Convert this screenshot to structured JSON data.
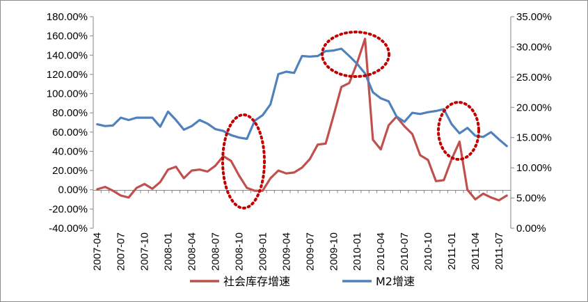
{
  "chart_data": {
    "type": "line",
    "x": [
      "2007-04",
      "2007-05",
      "2007-06",
      "2007-07",
      "2007-08",
      "2007-09",
      "2007-10",
      "2007-11",
      "2007-12",
      "2008-01",
      "2008-02",
      "2008-03",
      "2008-04",
      "2008-05",
      "2008-06",
      "2008-07",
      "2008-08",
      "2008-09",
      "2008-10",
      "2008-11",
      "2008-12",
      "2009-01",
      "2009-02",
      "2009-03",
      "2009-04",
      "2009-05",
      "2009-06",
      "2009-07",
      "2009-08",
      "2009-09",
      "2009-10",
      "2009-11",
      "2009-12",
      "2010-01",
      "2010-02",
      "2010-03",
      "2010-04",
      "2010-05",
      "2010-06",
      "2010-07",
      "2010-08",
      "2010-09",
      "2010-10",
      "2010-11",
      "2010-12",
      "2011-01",
      "2011-02",
      "2011-03",
      "2011-04",
      "2011-05",
      "2011-06",
      "2011-07",
      "2011-08"
    ],
    "x_tick_labels": [
      "2007-04",
      "2007-07",
      "2007-10",
      "2008-01",
      "2008-04",
      "2008-07",
      "2008-10",
      "2009-01",
      "2009-04",
      "2009-07",
      "2009-10",
      "2010-01",
      "2010-04",
      "2010-07",
      "2010-10",
      "2011-01",
      "2011-04",
      "2011-07"
    ],
    "y_left": {
      "ticks": [
        "-40.00%",
        "-20.00%",
        "0.00%",
        "20.00%",
        "40.00%",
        "60.00%",
        "80.00%",
        "100.00%",
        "120.00%",
        "140.00%",
        "160.00%",
        "180.00%"
      ],
      "min": -40,
      "max": 180
    },
    "y_right": {
      "ticks": [
        "0.00%",
        "5.00%",
        "10.00%",
        "15.00%",
        "20.00%",
        "25.00%",
        "30.00%",
        "35.00%"
      ],
      "min": 0,
      "max": 35
    },
    "series": [
      {
        "name": "社会库存增速",
        "axis": "left",
        "color": "#c0504d",
        "values": [
          0.5,
          3,
          -1,
          -6,
          -8,
          2,
          6,
          1,
          8,
          21,
          24,
          12,
          20,
          21,
          19,
          25,
          35,
          30,
          15,
          2,
          -1,
          -1,
          12,
          20,
          17,
          18,
          23,
          32,
          47,
          48,
          77,
          107,
          111,
          132,
          157,
          52,
          42,
          67,
          76,
          66,
          58,
          36,
          31,
          9,
          10,
          32,
          50,
          0,
          -10,
          -4,
          -8,
          -11,
          -6
        ],
        "color_key": "red"
      },
      {
        "name": "M2增速",
        "axis": "right",
        "color": "#4f81bd",
        "values": [
          17.2,
          16.9,
          17.0,
          18.3,
          17.9,
          18.3,
          18.3,
          18.3,
          16.8,
          19.3,
          17.9,
          16.3,
          16.9,
          17.9,
          17.3,
          16.4,
          16.1,
          15.4,
          15.0,
          14.8,
          17.8,
          18.7,
          20.5,
          25.5,
          25.9,
          25.7,
          28.5,
          28.4,
          28.5,
          29.3,
          29.4,
          29.7,
          28.5,
          27.2,
          25.6,
          22.5,
          21.5,
          21.0,
          18.5,
          17.6,
          19.1,
          18.9,
          19.2,
          19.4,
          19.7,
          17.2,
          15.7,
          16.6,
          15.3,
          15.1,
          15.9,
          14.7,
          13.6
        ],
        "color_key": "blue"
      }
    ],
    "legend_position": "bottom",
    "grid": false
  }
}
